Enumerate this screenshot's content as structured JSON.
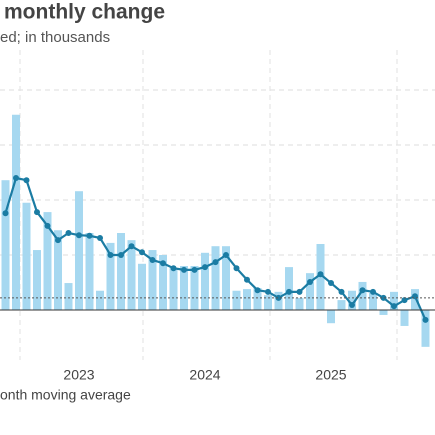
{
  "chart_data": {
    "type": "bar",
    "title": "monthly change",
    "subtitle": "ed; in thousands",
    "categories": [
      null,
      null,
      null,
      null,
      null,
      null,
      null,
      "2023",
      null,
      null,
      null,
      null,
      null,
      null,
      null,
      null,
      null,
      null,
      null,
      "2024",
      null,
      null,
      null,
      null,
      null,
      null,
      null,
      null,
      null,
      null,
      null,
      "2025",
      null,
      null,
      null,
      null,
      null,
      null,
      null,
      null,
      null
    ],
    "series": [
      {
        "type": "bar",
        "color": "#a6d8f0",
        "values": [
          236,
          355,
          195,
          109,
          178,
          145,
          49,
          216,
          140,
          35,
          122,
          140,
          127,
          84,
          109,
          100,
          76,
          80,
          80,
          104,
          116,
          116,
          35,
          38,
          40,
          27,
          33,
          78,
          22,
          67,
          120,
          -24,
          18,
          35,
          51,
          31,
          -9,
          33,
          -29,
          38,
          -67
        ]
      },
      {
        "type": "line",
        "name": "onth moving average",
        "color": "#1b7ca3",
        "values": [
          176,
          240,
          236,
          178,
          153,
          127,
          140,
          136,
          135,
          131,
          100,
          100,
          116,
          105,
          91,
          85,
          76,
          73,
          73,
          78,
          87,
          100,
          76,
          55,
          36,
          33,
          22,
          33,
          33,
          51,
          65,
          49,
          33,
          9,
          36,
          33,
          22,
          7,
          18,
          25,
          -18
        ]
      }
    ],
    "ylim": [
      -200,
      600
    ],
    "yticks": [
      100,
      200,
      300,
      400
    ],
    "reference_line": 22,
    "grid": true
  }
}
